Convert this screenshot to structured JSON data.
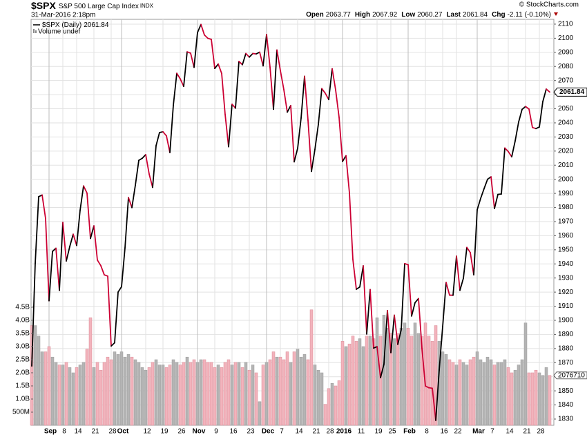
{
  "chart_data": {
    "type": "line",
    "symbol": "$SPX",
    "name": "S&P 500 Large Cap Index",
    "exchange": "INDX",
    "timestamp": "31-Mar-2016 2:18pm",
    "copyright": "© StockCharts.com",
    "quote": {
      "open_label": "Open",
      "open": 2063.77,
      "high_label": "High",
      "high": 2067.92,
      "low_label": "Low",
      "low": 2060.27,
      "last_label": "Last",
      "last": 2061.84,
      "chg_label": "Chg",
      "chg": -2.11,
      "chg_pct": "(-0.10%)"
    },
    "categories": [
      null,
      null,
      null,
      null,
      null,
      "Sep",
      null,
      null,
      null,
      "8",
      null,
      null,
      null,
      "14",
      null,
      null,
      null,
      null,
      "21",
      null,
      null,
      null,
      null,
      "28",
      null,
      null,
      "Oct",
      null,
      null,
      null,
      null,
      null,
      null,
      "12",
      null,
      null,
      null,
      null,
      "19",
      null,
      null,
      null,
      null,
      "26",
      null,
      null,
      null,
      null,
      "Nov",
      null,
      null,
      null,
      null,
      "9",
      null,
      null,
      null,
      null,
      "16",
      null,
      null,
      null,
      null,
      "23",
      null,
      null,
      null,
      null,
      "Dec",
      null,
      null,
      null,
      "7",
      null,
      null,
      null,
      null,
      "14",
      null,
      null,
      null,
      null,
      "21",
      null,
      null,
      null,
      "28",
      null,
      null,
      null,
      "2016",
      null,
      null,
      null,
      null,
      "11",
      null,
      null,
      null,
      null,
      "19",
      null,
      null,
      null,
      "25",
      null,
      null,
      null,
      null,
      "Feb",
      null,
      null,
      null,
      null,
      "8",
      null,
      null,
      null,
      null,
      "16",
      null,
      null,
      null,
      "22",
      null,
      null,
      null,
      null,
      null,
      "Mar",
      null,
      null,
      null,
      "7",
      null,
      null,
      null,
      null,
      "14",
      null,
      null,
      null,
      null,
      "21",
      null,
      null,
      null,
      "28",
      null,
      null,
      null
    ],
    "month_labels": [
      "Sep",
      "Oct",
      "Nov",
      "Dec",
      "2016",
      "Feb",
      "Mar"
    ],
    "series": [
      {
        "name": "$SPX (Daily)",
        "up_color": "#000000",
        "down_color": "#cc0033",
        "values": [
          1867.61,
          1940.51,
          1987.66,
          1988.87,
          1972.18,
          1913.85,
          1948.86,
          1951.13,
          1921.22,
          1969.41,
          1942.04,
          1952.29,
          1961.05,
          1953.03,
          1978.09,
          1995.31,
          1990.2,
          1958.03,
          1966.97,
          1942.74,
          1938.76,
          1932.24,
          1931.34,
          1881.77,
          1884.09,
          1920.03,
          1923.82,
          1951.36,
          1987.05,
          1979.92,
          1995.83,
          2013.43,
          2014.89,
          2017.46,
          2003.69,
          1994.24,
          2023.86,
          2033.11,
          2033.66,
          2030.77,
          2018.94,
          2052.51,
          2075.15,
          2071.18,
          2065.89,
          2090.35,
          2089.41,
          2079.36,
          2104.05,
          2109.79,
          2102.31,
          2099.93,
          2099.2,
          2078.58,
          2081.72,
          2075.0,
          2045.97,
          2023.04,
          2053.19,
          2050.44,
          2083.58,
          2081.24,
          2089.17,
          2086.59,
          2089.14,
          2088.87,
          2090.11,
          2080.41,
          2102.63,
          2079.51,
          2049.62,
          2091.69,
          2077.07,
          2063.59,
          2047.62,
          2052.23,
          2012.37,
          2021.94,
          2043.41,
          2073.07,
          2041.89,
          2005.55,
          2021.15,
          2038.97,
          2064.29,
          2060.99,
          2056.5,
          2078.36,
          2063.36,
          2043.94,
          2012.66,
          2016.71,
          1990.26,
          1943.09,
          1922.03,
          1923.67,
          1938.68,
          1890.28,
          1921.84,
          1880.33,
          1881.33,
          1859.33,
          1868.99,
          1906.9,
          1877.08,
          1903.63,
          1882.95,
          1893.36,
          1940.24,
          1939.38,
          1903.03,
          1912.53,
          1915.45,
          1880.05,
          1853.44,
          1852.21,
          1851.86,
          1829.08,
          1864.78,
          1895.58,
          1926.82,
          1917.83,
          1917.78,
          1945.5,
          1921.27,
          1929.8,
          1951.7,
          1948.05,
          1932.23,
          1978.35,
          1986.45,
          1993.4,
          1999.99,
          2001.76,
          1979.26,
          1989.26,
          1989.57,
          2022.19,
          2019.64,
          2015.93,
          2027.22,
          2040.59,
          2049.58,
          2051.6,
          2049.8,
          2036.71,
          2035.94,
          2037.05,
          2055.01,
          2063.95,
          2061.84
        ]
      },
      {
        "name": "Volume undef",
        "axis": "y2",
        "up_color": "#b4b4b4",
        "down_color": "#f2b3bc",
        "values": [
          3.8,
          3.8,
          3.4,
          2.8,
          2.8,
          3.0,
          2.6,
          2.4,
          2.3,
          2.3,
          2.4,
          2.2,
          2.0,
          2.2,
          2.3,
          2.4,
          2.9,
          4.1,
          2.2,
          2.4,
          2.1,
          2.4,
          2.6,
          2.5,
          2.8,
          2.7,
          2.8,
          2.6,
          2.7,
          2.6,
          2.5,
          2.4,
          2.2,
          2.1,
          2.2,
          2.4,
          2.5,
          2.3,
          2.3,
          2.2,
          2.3,
          2.5,
          2.4,
          2.3,
          2.4,
          2.6,
          2.4,
          2.5,
          2.4,
          2.5,
          2.5,
          2.4,
          2.4,
          2.2,
          2.3,
          2.2,
          2.4,
          2.5,
          2.3,
          2.4,
          2.4,
          2.2,
          2.4,
          2.1,
          2.3,
          2.0,
          0.9,
          2.3,
          2.4,
          2.5,
          2.8,
          2.6,
          2.6,
          2.5,
          2.8,
          2.4,
          2.8,
          2.9,
          2.6,
          2.7,
          2.5,
          4.4,
          2.3,
          2.1,
          2.0,
          0.8,
          1.4,
          1.6,
          1.5,
          1.7,
          3.2,
          3.0,
          3.1,
          3.4,
          3.2,
          3.3,
          3.0,
          3.4,
          3.4,
          3.3,
          4.1,
          3.4,
          4.2,
          3.7,
          3.5,
          3.3,
          3.5,
          3.7,
          3.9,
          3.7,
          3.4,
          3.9,
          3.5,
          3.4,
          3.9,
          3.4,
          3.2,
          3.8,
          3.2,
          2.8,
          2.7,
          2.5,
          2.4,
          2.3,
          2.5,
          2.4,
          2.3,
          2.5,
          2.6,
          2.8,
          2.5,
          2.4,
          2.6,
          2.5,
          2.3,
          2.4,
          2.4,
          2.5,
          2.2,
          2.0,
          2.1,
          2.3,
          2.5,
          3.9,
          2.0,
          2.0,
          2.1,
          2.0,
          1.9,
          2.2,
          1.9
        ]
      }
    ],
    "volume_last_label": "2076710",
    "ylim": [
      1825.6,
      2113.4
    ],
    "yticks": [
      1830,
      1840,
      1850,
      1860,
      1870,
      1880,
      1890,
      1900,
      1910,
      1920,
      1930,
      1940,
      1950,
      1960,
      1970,
      1980,
      1990,
      2000,
      2010,
      2020,
      2030,
      2040,
      2050,
      2060,
      2070,
      2080,
      2090,
      2100,
      2110
    ],
    "y2lim": [
      0,
      15.47
    ],
    "y2ticks": [
      {
        "value": 0.5,
        "label": "500M"
      },
      {
        "value": 1,
        "label": "1.0B"
      },
      {
        "value": 1.5,
        "label": "1.5B"
      },
      {
        "value": 2,
        "label": "2.0B"
      },
      {
        "value": 2.5,
        "label": "2.5B"
      },
      {
        "value": 3,
        "label": "3.0B"
      },
      {
        "value": 3.5,
        "label": "3.5B"
      },
      {
        "value": 4,
        "label": "4.0B"
      },
      {
        "value": 4.5,
        "label": "4.5B"
      }
    ],
    "grid": true
  }
}
